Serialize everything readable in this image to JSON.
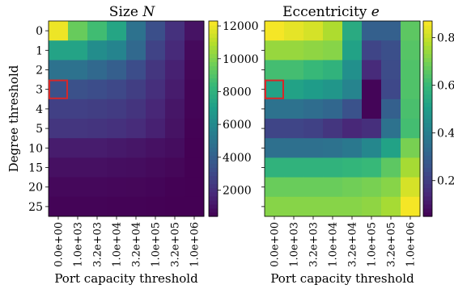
{
  "chart_data": [
    {
      "type": "heatmap",
      "title": "Size N",
      "title_base": "Size ",
      "title_var": "N",
      "xlabel": "Port capacity threshold",
      "ylabel": "Degree threshold",
      "x": [
        "0.0e+00",
        "1.0e+03",
        "3.2e+03",
        "1.0e+04",
        "3.2e+04",
        "1.0e+05",
        "3.2e+05",
        "1.0e+06"
      ],
      "y": [
        "0",
        "1",
        "2",
        "3",
        "4",
        "5",
        "10",
        "15",
        "20",
        "25"
      ],
      "z": [
        [
          12000,
          9500,
          8600,
          7400,
          4900,
          3300,
          2100,
          1000
        ],
        [
          7300,
          7300,
          6200,
          5800,
          4400,
          2800,
          1800,
          700
        ],
        [
          4900,
          4900,
          4400,
          4000,
          3200,
          2300,
          1500,
          600
        ],
        [
          3400,
          3400,
          3200,
          3000,
          2600,
          2000,
          1300,
          500
        ],
        [
          2700,
          2700,
          2600,
          2500,
          2200,
          1700,
          1100,
          500
        ],
        [
          2300,
          2300,
          2200,
          2100,
          1900,
          1500,
          1000,
          450
        ],
        [
          1300,
          1300,
          1300,
          1200,
          1100,
          950,
          800,
          400
        ],
        [
          900,
          900,
          900,
          850,
          800,
          700,
          600,
          350
        ],
        [
          650,
          650,
          650,
          620,
          600,
          550,
          450,
          300
        ],
        [
          500,
          500,
          500,
          480,
          470,
          430,
          380,
          250
        ]
      ],
      "colorbar": {
        "range": [
          400,
          12300
        ],
        "ticks": [
          "2000",
          "4000",
          "6000",
          "8000",
          "10000",
          "12000"
        ]
      },
      "highlight": {
        "x": "0.0e+00",
        "y": "3",
        "color": "#d62728"
      },
      "colormap": "viridis"
    },
    {
      "type": "heatmap",
      "title": "Eccentricity e",
      "title_base": "Eccentricity ",
      "title_var": "e",
      "xlabel": "Port capacity threshold",
      "ylabel": "",
      "x": [
        "0.0e+00",
        "1.0e+03",
        "3.2e+03",
        "1.0e+04",
        "3.2e+04",
        "1.0e+05",
        "3.2e+05",
        "1.0e+06"
      ],
      "y": [
        "0",
        "1",
        "2",
        "3",
        "4",
        "5",
        "10",
        "15",
        "20",
        "25"
      ],
      "z": [
        [
          0.86,
          0.84,
          0.82,
          0.77,
          0.55,
          0.3,
          0.3,
          0.66
        ],
        [
          0.74,
          0.74,
          0.73,
          0.72,
          0.52,
          0.22,
          0.25,
          0.65
        ],
        [
          0.62,
          0.62,
          0.6,
          0.58,
          0.46,
          0.15,
          0.24,
          0.64
        ],
        [
          0.52,
          0.52,
          0.5,
          0.48,
          0.42,
          0.06,
          0.23,
          0.64
        ],
        [
          0.36,
          0.36,
          0.34,
          0.32,
          0.26,
          0.06,
          0.3,
          0.63
        ],
        [
          0.22,
          0.22,
          0.21,
          0.18,
          0.14,
          0.16,
          0.36,
          0.62
        ],
        [
          0.35,
          0.35,
          0.35,
          0.36,
          0.38,
          0.43,
          0.52,
          0.7
        ],
        [
          0.58,
          0.58,
          0.58,
          0.58,
          0.59,
          0.6,
          0.66,
          0.76
        ],
        [
          0.68,
          0.68,
          0.68,
          0.68,
          0.69,
          0.7,
          0.72,
          0.82
        ],
        [
          0.72,
          0.72,
          0.72,
          0.72,
          0.72,
          0.73,
          0.76,
          0.86
        ]
      ],
      "colorbar": {
        "range": [
          0.05,
          0.87
        ],
        "ticks": [
          "0.2",
          "0.4",
          "0.6",
          "0.8"
        ]
      },
      "highlight": {
        "x": "0.0e+00",
        "y": "3",
        "color": "#d62728"
      },
      "colormap": "viridis"
    }
  ]
}
